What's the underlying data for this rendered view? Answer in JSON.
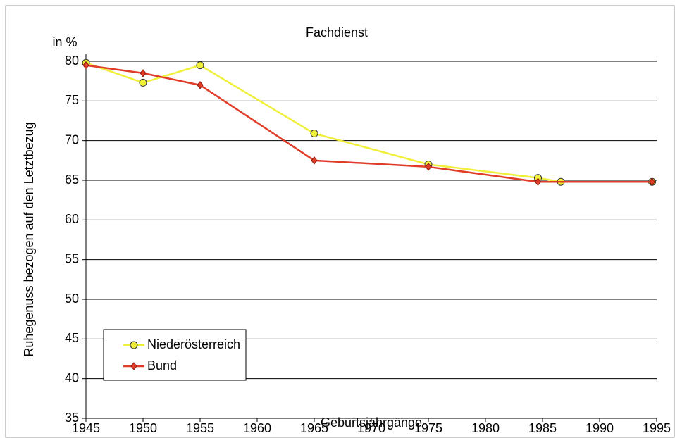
{
  "chart_data": {
    "type": "line",
    "title": "Fachdienst",
    "y_unit": "in %",
    "ylabel": "Ruhegenuss bezogen auf den Letztbezug",
    "xlabel": "Geburtsjahrgänge",
    "xlim": [
      1945,
      1995
    ],
    "xticks": [
      1945,
      1950,
      1955,
      1960,
      1965,
      1970,
      1975,
      1980,
      1985,
      1990,
      1995
    ],
    "ylim": [
      35,
      80
    ],
    "yticks": [
      35,
      40,
      45,
      50,
      55,
      60,
      65,
      70,
      75,
      80
    ],
    "grid": true,
    "legend": "lower left",
    "series": [
      {
        "name": "Niederösterreich",
        "color": "#f0f03c",
        "marker": "circle",
        "x": [
          1945,
          1950,
          1955,
          1965,
          1975,
          1984.6,
          1986.6,
          1994.6
        ],
        "values": [
          79.8,
          77.3,
          79.5,
          70.9,
          67,
          65.3,
          64.8,
          64.8
        ]
      },
      {
        "name": "Bund",
        "color": "#e03c28",
        "marker": "diamond",
        "x": [
          1945,
          1950,
          1955,
          1965,
          1975,
          1984.6,
          1994.6
        ],
        "values": [
          79.5,
          78.5,
          77,
          67.5,
          66.7,
          64.8,
          64.8
        ]
      }
    ]
  }
}
